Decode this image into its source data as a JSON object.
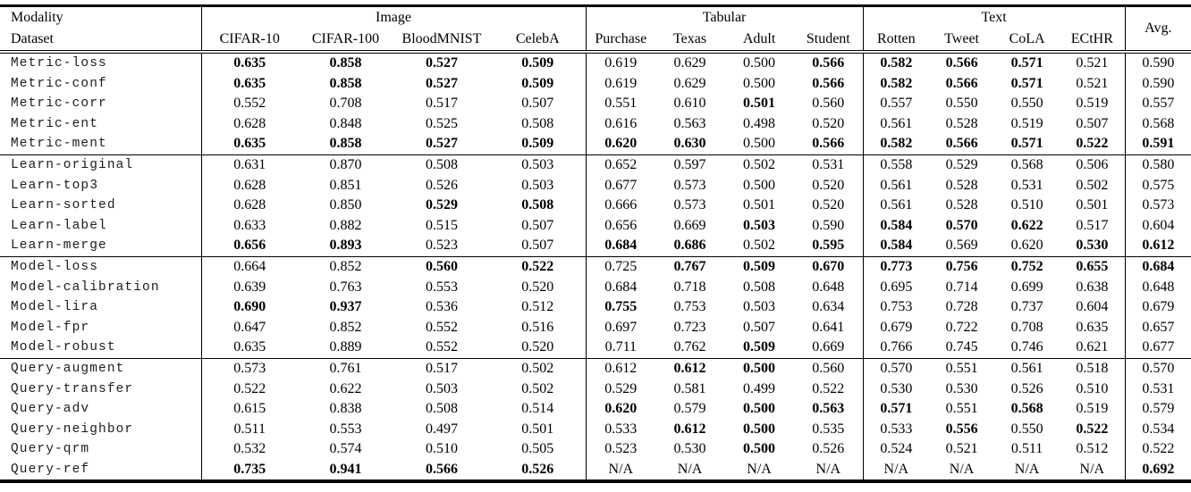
{
  "table": {
    "header": {
      "modality_label": "Modality",
      "dataset_label": "Dataset",
      "avg_label": "Avg.",
      "groups": [
        {
          "label": "Image",
          "datasets": [
            "CIFAR-10",
            "CIFAR-100",
            "BloodMNIST",
            "CelebA"
          ]
        },
        {
          "label": "Tabular",
          "datasets": [
            "Purchase",
            "Texas",
            "Adult",
            "Student"
          ]
        },
        {
          "label": "Text",
          "datasets": [
            "Rotten",
            "Tweet",
            "CoLA",
            "ECtHR"
          ]
        }
      ]
    },
    "sections": [
      {
        "name": "metric",
        "rows": [
          {
            "label": "Metric-loss",
            "values": [
              "0.635",
              "0.858",
              "0.527",
              "0.509",
              "0.619",
              "0.629",
              "0.500",
              "0.566",
              "0.582",
              "0.566",
              "0.571",
              "0.521"
            ],
            "bold": [
              1,
              1,
              1,
              1,
              0,
              0,
              0,
              1,
              1,
              1,
              1,
              0
            ],
            "avg": "0.590",
            "avg_bold": 0
          },
          {
            "label": "Metric-conf",
            "values": [
              "0.635",
              "0.858",
              "0.527",
              "0.509",
              "0.619",
              "0.629",
              "0.500",
              "0.566",
              "0.582",
              "0.566",
              "0.571",
              "0.521"
            ],
            "bold": [
              1,
              1,
              1,
              1,
              0,
              0,
              0,
              1,
              1,
              1,
              1,
              0
            ],
            "avg": "0.590",
            "avg_bold": 0
          },
          {
            "label": "Metric-corr",
            "values": [
              "0.552",
              "0.708",
              "0.517",
              "0.507",
              "0.551",
              "0.610",
              "0.501",
              "0.560",
              "0.557",
              "0.550",
              "0.550",
              "0.519"
            ],
            "bold": [
              0,
              0,
              0,
              0,
              0,
              0,
              1,
              0,
              0,
              0,
              0,
              0
            ],
            "avg": "0.557",
            "avg_bold": 0
          },
          {
            "label": "Metric-ent",
            "values": [
              "0.628",
              "0.848",
              "0.525",
              "0.508",
              "0.616",
              "0.563",
              "0.498",
              "0.520",
              "0.561",
              "0.528",
              "0.519",
              "0.507"
            ],
            "bold": [
              0,
              0,
              0,
              0,
              0,
              0,
              0,
              0,
              0,
              0,
              0,
              0
            ],
            "avg": "0.568",
            "avg_bold": 0
          },
          {
            "label": "Metric-ment",
            "values": [
              "0.635",
              "0.858",
              "0.527",
              "0.509",
              "0.620",
              "0.630",
              "0.500",
              "0.566",
              "0.582",
              "0.566",
              "0.571",
              "0.522"
            ],
            "bold": [
              1,
              1,
              1,
              1,
              1,
              1,
              0,
              1,
              1,
              1,
              1,
              1
            ],
            "avg": "0.591",
            "avg_bold": 1
          }
        ]
      },
      {
        "name": "learn",
        "rows": [
          {
            "label": "Learn-original",
            "values": [
              "0.631",
              "0.870",
              "0.508",
              "0.503",
              "0.652",
              "0.597",
              "0.502",
              "0.531",
              "0.558",
              "0.529",
              "0.568",
              "0.506"
            ],
            "bold": [
              0,
              0,
              0,
              0,
              0,
              0,
              0,
              0,
              0,
              0,
              0,
              0
            ],
            "avg": "0.580",
            "avg_bold": 0
          },
          {
            "label": "Learn-top3",
            "values": [
              "0.628",
              "0.851",
              "0.526",
              "0.503",
              "0.677",
              "0.573",
              "0.500",
              "0.520",
              "0.561",
              "0.528",
              "0.531",
              "0.502"
            ],
            "bold": [
              0,
              0,
              0,
              0,
              0,
              0,
              0,
              0,
              0,
              0,
              0,
              0
            ],
            "avg": "0.575",
            "avg_bold": 0
          },
          {
            "label": "Learn-sorted",
            "values": [
              "0.628",
              "0.850",
              "0.529",
              "0.508",
              "0.666",
              "0.573",
              "0.501",
              "0.520",
              "0.561",
              "0.528",
              "0.510",
              "0.501"
            ],
            "bold": [
              0,
              0,
              1,
              1,
              0,
              0,
              0,
              0,
              0,
              0,
              0,
              0
            ],
            "avg": "0.573",
            "avg_bold": 0
          },
          {
            "label": "Learn-label",
            "values": [
              "0.633",
              "0.882",
              "0.515",
              "0.507",
              "0.656",
              "0.669",
              "0.503",
              "0.590",
              "0.584",
              "0.570",
              "0.622",
              "0.517"
            ],
            "bold": [
              0,
              0,
              0,
              0,
              0,
              0,
              1,
              0,
              1,
              1,
              1,
              0
            ],
            "avg": "0.604",
            "avg_bold": 0
          },
          {
            "label": "Learn-merge",
            "values": [
              "0.656",
              "0.893",
              "0.523",
              "0.507",
              "0.684",
              "0.686",
              "0.502",
              "0.595",
              "0.584",
              "0.569",
              "0.620",
              "0.530"
            ],
            "bold": [
              1,
              1,
              0,
              0,
              1,
              1,
              0,
              1,
              1,
              0,
              0,
              1
            ],
            "avg": "0.612",
            "avg_bold": 1
          }
        ]
      },
      {
        "name": "model",
        "rows": [
          {
            "label": "Model-loss",
            "values": [
              "0.664",
              "0.852",
              "0.560",
              "0.522",
              "0.725",
              "0.767",
              "0.509",
              "0.670",
              "0.773",
              "0.756",
              "0.752",
              "0.655"
            ],
            "bold": [
              0,
              0,
              1,
              1,
              0,
              1,
              1,
              1,
              1,
              1,
              1,
              1
            ],
            "avg": "0.684",
            "avg_bold": 1
          },
          {
            "label": "Model-calibration",
            "values": [
              "0.639",
              "0.763",
              "0.553",
              "0.520",
              "0.684",
              "0.718",
              "0.508",
              "0.648",
              "0.695",
              "0.714",
              "0.699",
              "0.638"
            ],
            "bold": [
              0,
              0,
              0,
              0,
              0,
              0,
              0,
              0,
              0,
              0,
              0,
              0
            ],
            "avg": "0.648",
            "avg_bold": 0
          },
          {
            "label": "Model-lira",
            "values": [
              "0.690",
              "0.937",
              "0.536",
              "0.512",
              "0.755",
              "0.753",
              "0.503",
              "0.634",
              "0.753",
              "0.728",
              "0.737",
              "0.604"
            ],
            "bold": [
              1,
              1,
              0,
              0,
              1,
              0,
              0,
              0,
              0,
              0,
              0,
              0
            ],
            "avg": "0.679",
            "avg_bold": 0
          },
          {
            "label": "Model-fpr",
            "values": [
              "0.647",
              "0.852",
              "0.552",
              "0.516",
              "0.697",
              "0.723",
              "0.507",
              "0.641",
              "0.679",
              "0.722",
              "0.708",
              "0.635"
            ],
            "bold": [
              0,
              0,
              0,
              0,
              0,
              0,
              0,
              0,
              0,
              0,
              0,
              0
            ],
            "avg": "0.657",
            "avg_bold": 0
          },
          {
            "label": "Model-robust",
            "values": [
              "0.635",
              "0.889",
              "0.552",
              "0.520",
              "0.711",
              "0.762",
              "0.509",
              "0.669",
              "0.766",
              "0.745",
              "0.746",
              "0.621"
            ],
            "bold": [
              0,
              0,
              0,
              0,
              0,
              0,
              1,
              0,
              0,
              0,
              0,
              0
            ],
            "avg": "0.677",
            "avg_bold": 0
          }
        ]
      },
      {
        "name": "query",
        "rows": [
          {
            "label": "Query-augment",
            "values": [
              "0.573",
              "0.761",
              "0.517",
              "0.502",
              "0.612",
              "0.612",
              "0.500",
              "0.560",
              "0.570",
              "0.551",
              "0.561",
              "0.518"
            ],
            "bold": [
              0,
              0,
              0,
              0,
              0,
              1,
              1,
              0,
              0,
              0,
              0,
              0
            ],
            "avg": "0.570",
            "avg_bold": 0
          },
          {
            "label": "Query-transfer",
            "values": [
              "0.522",
              "0.622",
              "0.503",
              "0.502",
              "0.529",
              "0.581",
              "0.499",
              "0.522",
              "0.530",
              "0.530",
              "0.526",
              "0.510"
            ],
            "bold": [
              0,
              0,
              0,
              0,
              0,
              0,
              0,
              0,
              0,
              0,
              0,
              0
            ],
            "avg": "0.531",
            "avg_bold": 0
          },
          {
            "label": "Query-adv",
            "values": [
              "0.615",
              "0.838",
              "0.508",
              "0.514",
              "0.620",
              "0.579",
              "0.500",
              "0.563",
              "0.571",
              "0.551",
              "0.568",
              "0.519"
            ],
            "bold": [
              0,
              0,
              0,
              0,
              1,
              0,
              1,
              1,
              1,
              0,
              1,
              0
            ],
            "avg": "0.579",
            "avg_bold": 0
          },
          {
            "label": "Query-neighbor",
            "values": [
              "0.511",
              "0.553",
              "0.497",
              "0.501",
              "0.533",
              "0.612",
              "0.500",
              "0.535",
              "0.533",
              "0.556",
              "0.550",
              "0.522"
            ],
            "bold": [
              0,
              0,
              0,
              0,
              0,
              1,
              1,
              0,
              0,
              1,
              0,
              1
            ],
            "avg": "0.534",
            "avg_bold": 0
          },
          {
            "label": "Query-qrm",
            "values": [
              "0.532",
              "0.574",
              "0.510",
              "0.505",
              "0.523",
              "0.530",
              "0.500",
              "0.526",
              "0.524",
              "0.521",
              "0.511",
              "0.512"
            ],
            "bold": [
              0,
              0,
              0,
              0,
              0,
              0,
              1,
              0,
              0,
              0,
              0,
              0
            ],
            "avg": "0.522",
            "avg_bold": 0
          },
          {
            "label": "Query-ref",
            "values": [
              "0.735",
              "0.941",
              "0.566",
              "0.526",
              "N/A",
              "N/A",
              "N/A",
              "N/A",
              "N/A",
              "N/A",
              "N/A",
              "N/A"
            ],
            "bold": [
              1,
              1,
              1,
              1,
              0,
              0,
              0,
              0,
              0,
              0,
              0,
              0
            ],
            "avg": "0.692",
            "avg_bold": 1
          }
        ]
      }
    ]
  }
}
